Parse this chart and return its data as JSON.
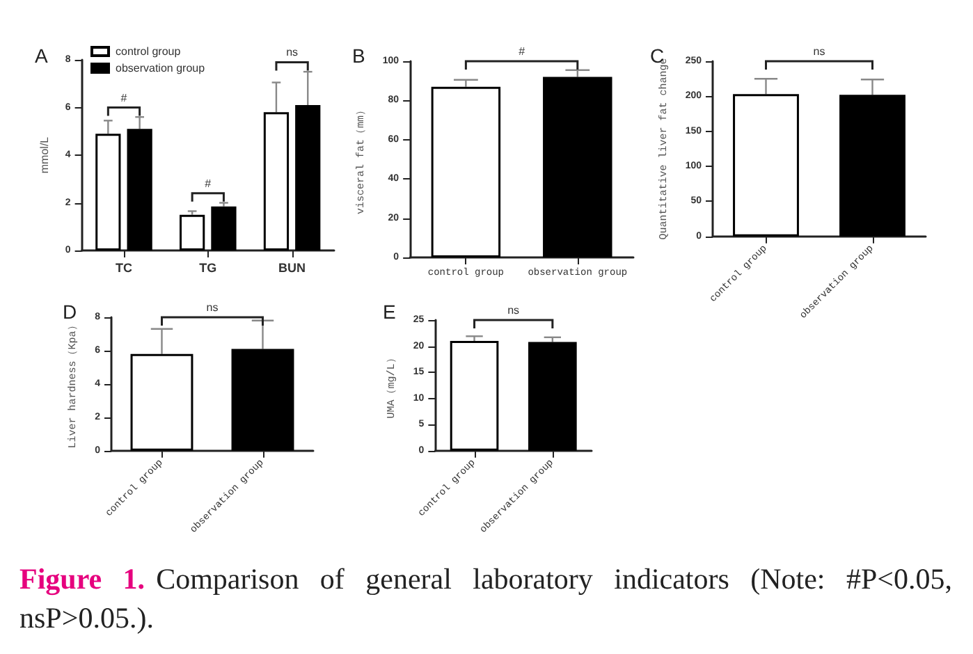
{
  "chart_data": [
    {
      "type": "bar",
      "title": "A",
      "ylabel": "mmol/L",
      "categories": [
        "TC",
        "TG",
        "BUN"
      ],
      "ylim": [
        0,
        8
      ],
      "yticks": [
        0,
        2,
        4,
        6,
        8
      ],
      "legend": "top left",
      "series": [
        {
          "name": "control group",
          "color": "#ffffff",
          "values": [
            4.9,
            1.5,
            5.8
          ],
          "errors": [
            [
              4.9,
              5.45
            ],
            [
              1.5,
              1.65
            ],
            [
              5.8,
              7.05
            ]
          ]
        },
        {
          "name": "observation group",
          "color": "#000000",
          "values": [
            5.1,
            1.85,
            6.1
          ],
          "errors": [
            [
              5.1,
              5.6
            ],
            [
              1.85,
              2.0
            ],
            [
              6.1,
              7.5
            ]
          ]
        }
      ],
      "annotations": [
        "#",
        "#",
        "ns"
      ]
    },
    {
      "type": "bar",
      "title": "B",
      "ylabel": "visceral fat（mm）",
      "categories": [
        "control group",
        "observation group"
      ],
      "ylim": [
        0,
        100
      ],
      "yticks": [
        0,
        20,
        40,
        60,
        80,
        100
      ],
      "values": [
        87,
        92
      ],
      "colors": [
        "#ffffff",
        "#000000"
      ],
      "errors": [
        [
          87,
          90.5
        ],
        [
          92,
          95.5
        ]
      ],
      "annotations": [
        "#"
      ]
    },
    {
      "type": "bar",
      "title": "C",
      "ylabel": "Quantitative liver fat change",
      "categories": [
        "control group",
        "observation group"
      ],
      "ylim": [
        0,
        250
      ],
      "yticks": [
        0,
        50,
        100,
        150,
        200,
        250
      ],
      "values": [
        203,
        202
      ],
      "colors": [
        "#ffffff",
        "#000000"
      ],
      "errors": [
        [
          203,
          225
        ],
        [
          202,
          224
        ]
      ],
      "annotations": [
        "ns"
      ]
    },
    {
      "type": "bar",
      "title": "D",
      "ylabel": "Liver hardness（Kpa）",
      "categories": [
        "control group",
        "observation group"
      ],
      "ylim": [
        0,
        8
      ],
      "yticks": [
        0,
        2,
        4,
        6,
        8
      ],
      "values": [
        5.8,
        6.1
      ],
      "colors": [
        "#ffffff",
        "#000000"
      ],
      "errors": [
        [
          5.8,
          7.3
        ],
        [
          6.1,
          7.8
        ]
      ],
      "annotations": [
        "ns"
      ]
    },
    {
      "type": "bar",
      "title": "E",
      "ylabel": "UMA（mg/L）",
      "categories": [
        "control group",
        "observation group"
      ],
      "ylim": [
        0,
        25
      ],
      "yticks": [
        0,
        5,
        10,
        15,
        20,
        25
      ],
      "values": [
        21,
        20.8
      ],
      "colors": [
        "#ffffff",
        "#000000"
      ],
      "errors": [
        [
          21,
          21.9
        ],
        [
          20.8,
          21.7
        ]
      ],
      "annotations": [
        "ns"
      ]
    },
    {
      "type": "other",
      "annotations": [
        "Figure 1.",
        "Comparison of general laboratory indicators (Note: #P<0.05, nsP>0.05.)."
      ]
    }
  ]
}
